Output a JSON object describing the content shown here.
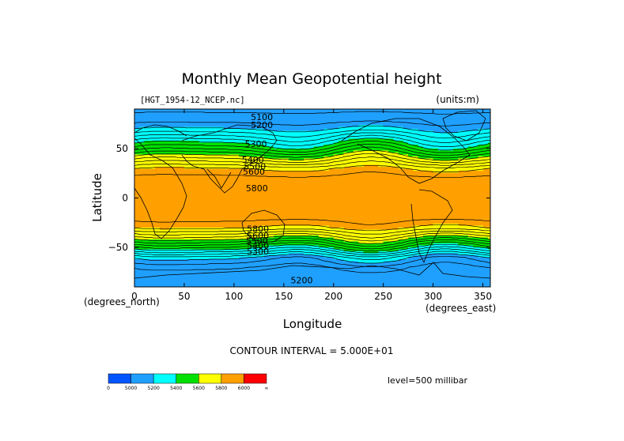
{
  "chart_data": {
    "type": "heatmap",
    "title": "Monthly Mean Geopotential height",
    "file_label": "[HGT_1954-12_NCEP.nc]",
    "units_label": "(units:m)",
    "xlabel": "Longitude",
    "ylabel": "Latitude",
    "x_unit_label": "(degrees_east)",
    "y_unit_label": "(degrees_north)",
    "xlim": [
      0,
      357.5
    ],
    "ylim": [
      -90,
      90
    ],
    "x_ticks": [
      0,
      50,
      100,
      150,
      200,
      250,
      300,
      350
    ],
    "y_ticks": [
      -50,
      0,
      50
    ],
    "y_tick_labels": [
      "−50",
      "0",
      "50"
    ],
    "contour_interval_text": "CONTOUR INTERVAL = 5.000E+01",
    "level_text": "level=500 millibar",
    "colorbar": {
      "bounds": [
        4800,
        5000,
        5200,
        5400,
        5600,
        5800,
        6000
      ],
      "labels": [
        "0",
        "5000",
        "5200",
        "5400",
        "5600",
        "5800",
        "6000",
        "∞"
      ],
      "colors": [
        "#0055ff",
        "#1fa0ff",
        "#00ffff",
        "#00e000",
        "#ffff00",
        "#ffa000",
        "#ff0000"
      ]
    },
    "contour_labels": [
      {
        "text": "5100",
        "lon": 128,
        "lat": 82
      },
      {
        "text": "5200",
        "lon": 128,
        "lat": 74
      },
      {
        "text": "5300",
        "lon": 122,
        "lat": 55
      },
      {
        "text": "5400",
        "lon": 119,
        "lat": 39
      },
      {
        "text": "5500",
        "lon": 121,
        "lat": 32
      },
      {
        "text": "5600",
        "lon": 120,
        "lat": 27
      },
      {
        "text": "5800",
        "lon": 123,
        "lat": 10
      },
      {
        "text": "5800",
        "lon": 124,
        "lat": -31
      },
      {
        "text": "5600",
        "lon": 124,
        "lat": -38
      },
      {
        "text": "5500",
        "lon": 123,
        "lat": -43
      },
      {
        "text": "5400",
        "lon": 124,
        "lat": -48
      },
      {
        "text": "5300",
        "lon": 124,
        "lat": -54
      },
      {
        "text": "5200",
        "lon": 168,
        "lat": -83
      }
    ],
    "height_profile": {
      "lat": [
        90,
        80,
        70,
        60,
        50,
        40,
        30,
        20,
        10,
        0,
        -10,
        -20,
        -30,
        -40,
        -50,
        -60,
        -70,
        -80,
        -90
      ],
      "value": [
        5090,
        5120,
        5200,
        5330,
        5470,
        5640,
        5800,
        5870,
        5880,
        5880,
        5880,
        5870,
        5800,
        5620,
        5420,
        5200,
        5100,
        5060,
        5090
      ]
    }
  }
}
